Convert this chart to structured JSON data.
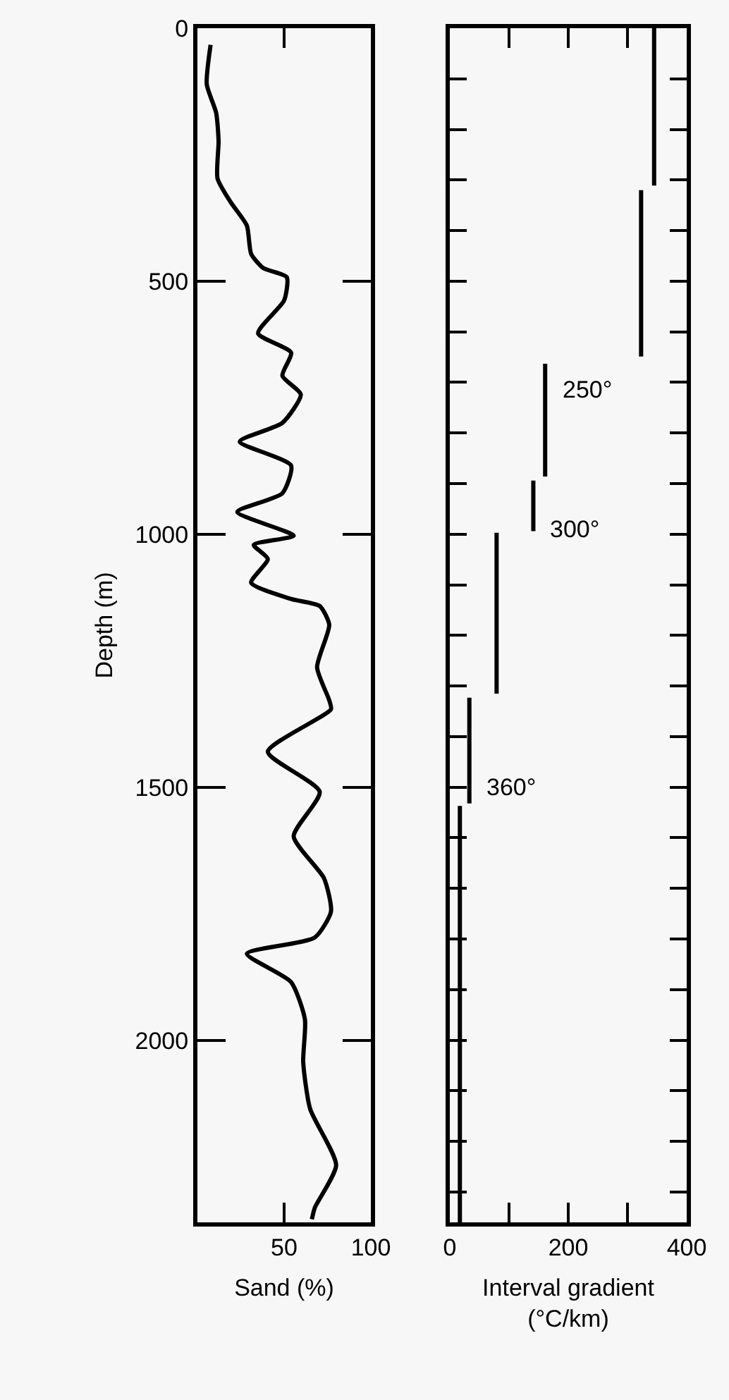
{
  "chart_data": [
    {
      "type": "line",
      "xlabel": "Sand (%)",
      "ylabel": "Depth (m)",
      "xlim": [
        0,
        100
      ],
      "xticks": [
        {
          "value": 0,
          "label": null
        },
        50,
        100
      ],
      "ylim": [
        2360,
        0
      ],
      "yticks": [
        0,
        500,
        1000,
        1500,
        2000
      ],
      "grid": false,
      "marker": "none",
      "line_style": "solid",
      "series": [
        {
          "color": "#000000",
          "x": [
            7.6,
            5.4,
            10.8,
            12.2,
            11.6,
            19,
            28.5,
            31,
            38,
            51.5,
            50,
            35,
            54,
            49,
            59.6,
            49,
            24.4,
            54,
            49,
            23,
            55.5,
            32.5,
            40.6,
            31,
            54,
            70.5,
            76,
            69,
            76,
            77,
            40.6,
            70.5,
            55.5,
            73,
            77,
            67.7,
            28.5,
            54,
            62,
            61,
            65,
            80,
            67.7,
            66
          ],
          "values": [
            33,
            111,
            167,
            223,
            297,
            343,
            390,
            446,
            474,
            492,
            538,
            603,
            641,
            687,
            724,
            780,
            817,
            864,
            919,
            956,
            1003,
            1021,
            1049,
            1096,
            1128,
            1142,
            1179,
            1263,
            1328,
            1346,
            1430,
            1509,
            1597,
            1680,
            1746,
            1797,
            1829,
            1885,
            1959,
            2043,
            2136,
            2247,
            2331,
            2354
          ]
        }
      ]
    },
    {
      "type": "line",
      "xlabel": "Interval gradient (°C/km)",
      "xlim": [
        0,
        400
      ],
      "xticks": [
        0,
        {
          "value": 100,
          "label": null
        },
        200,
        {
          "value": 300,
          "label": null
        },
        400
      ],
      "ylim": [
        2360,
        0
      ],
      "yticks": [
        {
          "value": 0,
          "label": null
        },
        {
          "value": 100,
          "label": null
        },
        {
          "value": 200,
          "label": null
        },
        {
          "value": 300,
          "label": null
        },
        {
          "value": 400,
          "label": null
        },
        {
          "value": 500,
          "label": null
        },
        {
          "value": 600,
          "label": null
        },
        {
          "value": 700,
          "label": null
        },
        {
          "value": 800,
          "label": null
        },
        {
          "value": 900,
          "label": null
        },
        {
          "value": 1000,
          "label": null
        },
        {
          "value": 1100,
          "label": null
        },
        {
          "value": 1200,
          "label": null
        },
        {
          "value": 1300,
          "label": null
        },
        {
          "value": 1400,
          "label": null
        },
        {
          "value": 1500,
          "label": null
        },
        {
          "value": 1600,
          "label": null
        },
        {
          "value": 1700,
          "label": null
        },
        {
          "value": 1800,
          "label": null
        },
        {
          "value": 1900,
          "label": null
        },
        {
          "value": 2000,
          "label": null
        },
        {
          "value": 2100,
          "label": null
        },
        {
          "value": 2200,
          "label": null
        },
        {
          "value": 2300,
          "label": null
        }
      ],
      "tick_labels": "x",
      "grid": false,
      "marker": "none",
      "line_style": "solid",
      "series": [
        {
          "color": "#000000",
          "x": [
            345,
            345,
            null,
            323,
            323,
            null,
            161,
            161,
            null,
            141,
            141,
            null,
            79,
            79,
            null,
            33,
            33,
            null,
            17,
            17
          ],
          "values": [
            0,
            311,
            null,
            320,
            649,
            null,
            663,
            886,
            null,
            894,
            994,
            null,
            997,
            1315,
            null,
            1323,
            1532,
            null,
            1537,
            2360
          ]
        }
      ],
      "annotations": [
        {
          "text": "250°",
          "x": 161,
          "y": 715
        },
        {
          "text": "300°",
          "x": 141,
          "y": 990
        },
        {
          "text": "360°",
          "x": 33,
          "y": 1500
        }
      ]
    }
  ]
}
